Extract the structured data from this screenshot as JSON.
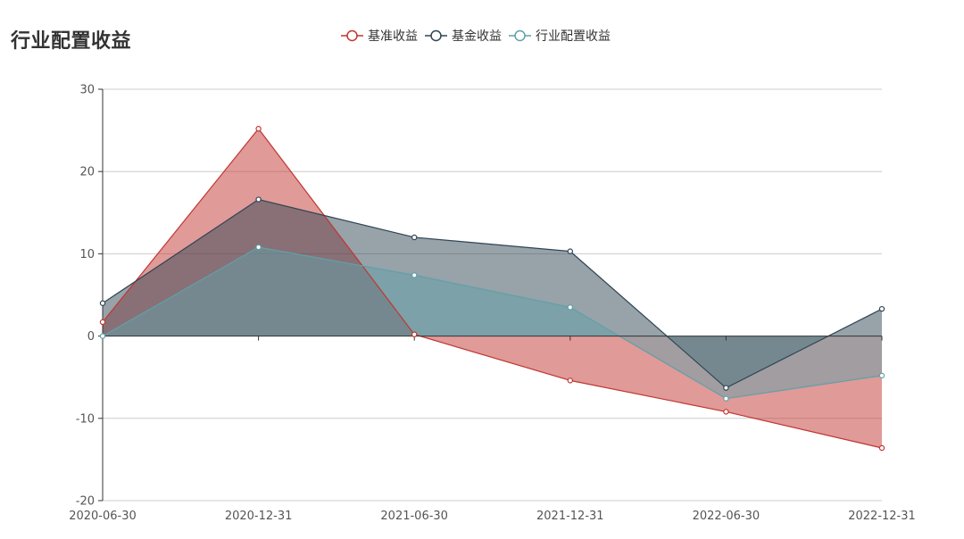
{
  "title": "行业配置收益",
  "chart_data": {
    "type": "area",
    "title": "行业配置收益",
    "categories": [
      "2020-06-30",
      "2020-12-31",
      "2021-06-30",
      "2021-12-31",
      "2022-06-30",
      "2022-12-31"
    ],
    "ylim": [
      -20,
      30
    ],
    "yticks": [
      30,
      20,
      10,
      0,
      -10,
      -20
    ],
    "grid": true,
    "legend_position": "top-center",
    "series": [
      {
        "name": "基准收益",
        "color": "#c23531",
        "values": [
          1.7,
          25.2,
          0.2,
          -5.4,
          -9.2,
          -13.6
        ]
      },
      {
        "name": "基金收益",
        "color": "#2f4554",
        "values": [
          4.0,
          16.6,
          12.0,
          10.3,
          -6.3,
          3.3
        ]
      },
      {
        "name": "行业配置收益",
        "color": "#61a0a8",
        "values": [
          0.0,
          10.8,
          7.4,
          3.5,
          -7.6,
          -4.8
        ]
      }
    ]
  }
}
